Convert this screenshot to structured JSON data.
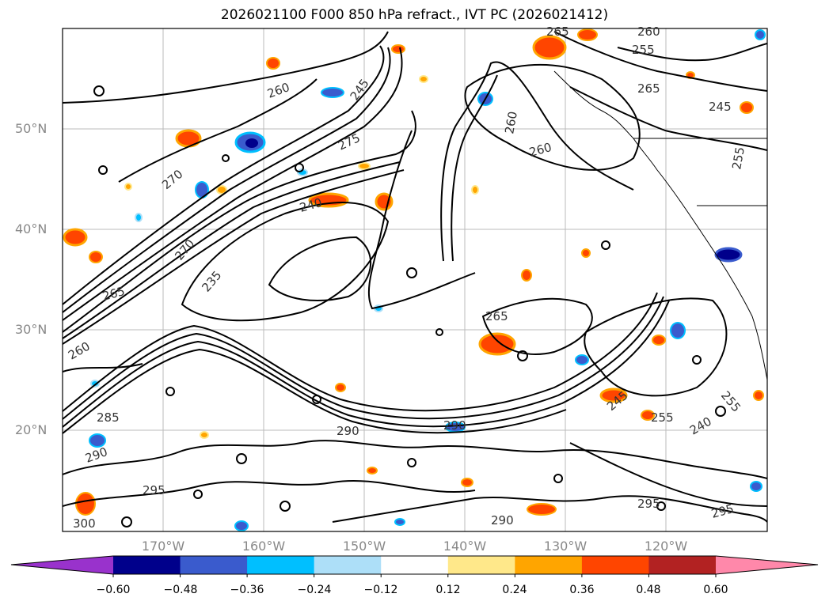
{
  "title": "2026021100 F000 850 hPa refract., IVT PC (2026021412)",
  "map": {
    "lat_labels": [
      "50°N",
      "40°N",
      "30°N",
      "20°N"
    ],
    "lon_labels": [
      "170°W",
      "160°W",
      "150°W",
      "140°W",
      "130°W",
      "120°W"
    ]
  },
  "contour_labels": [
    "265",
    "260",
    "255",
    "265",
    "245",
    "260",
    "275",
    "260",
    "270",
    "260",
    "255",
    "245",
    "240",
    "270",
    "235",
    "265",
    "260",
    "265",
    "290",
    "285",
    "290",
    "255",
    "245",
    "255",
    "240",
    "290",
    "295",
    "290",
    "295",
    "300",
    "295"
  ],
  "colorbar": {
    "ticks": [
      "−0.60",
      "−0.48",
      "−0.36",
      "−0.24",
      "−0.12",
      "0.12",
      "0.24",
      "0.36",
      "0.48",
      "0.60"
    ],
    "colors": [
      "#9932CC",
      "#00008B",
      "#3A5BCD",
      "#00BFFF",
      "#ADDFF8",
      "#FFFFFF",
      "#FFE88A",
      "#FFA500",
      "#FF4500",
      "#B22222",
      "#FF88AA"
    ]
  }
}
